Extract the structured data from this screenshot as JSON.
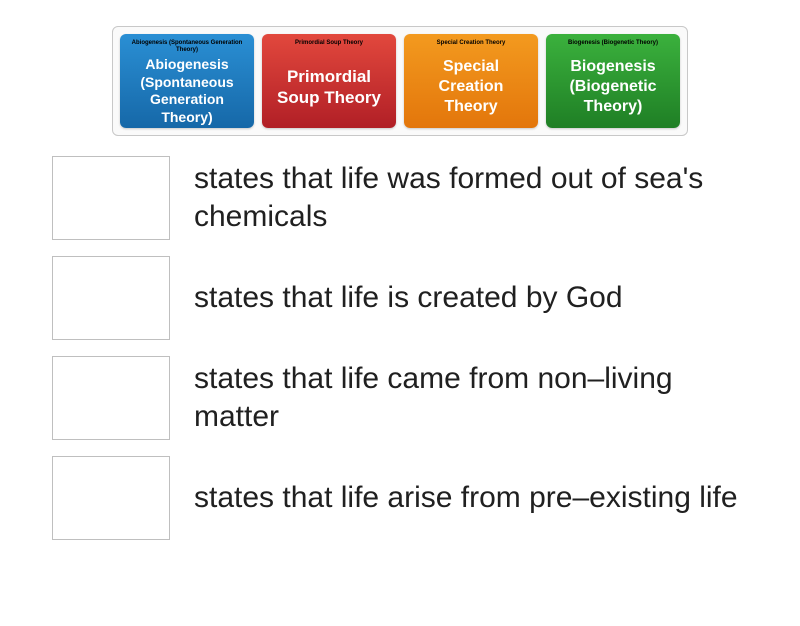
{
  "tray": {
    "background": "#fafafa",
    "border_color": "#c8c8c8",
    "cards": [
      {
        "id": "abiogenesis",
        "small_label": "Abiogenesis (Spontaneous Generation Theory)",
        "big_label": "Abiogenesis (Spontaneous Generation Theory)",
        "bg_top": "#2a8fd4",
        "bg_bottom": "#1668a8",
        "big_fontsize": 14
      },
      {
        "id": "primordial",
        "small_label": "Primordial Soup Theory",
        "big_label": "Primordial Soup Theory",
        "bg_top": "#e2483d",
        "bg_bottom": "#b11f26",
        "big_fontsize": 17
      },
      {
        "id": "special",
        "small_label": "Special Creation Theory",
        "big_label": "Special Creation Theory",
        "bg_top": "#f39a1f",
        "bg_bottom": "#e3760b",
        "big_fontsize": 16
      },
      {
        "id": "biogenesis",
        "small_label": "Biogenesis (Biogenetic Theory)",
        "big_label": "Biogenesis (Biogenetic Theory)",
        "bg_top": "#3bb13d",
        "bg_bottom": "#1f7f25",
        "big_fontsize": 16
      }
    ]
  },
  "statements": [
    {
      "text": "states that life was formed out of sea's chemicals"
    },
    {
      "text": "states that life is created by God"
    },
    {
      "text": "states that life came from non–living matter"
    },
    {
      "text": "states that life arise from pre–existing life"
    }
  ],
  "dropzone": {
    "border_color": "#bfbfbf",
    "background": "#ffffff"
  },
  "text_color": "#202020"
}
